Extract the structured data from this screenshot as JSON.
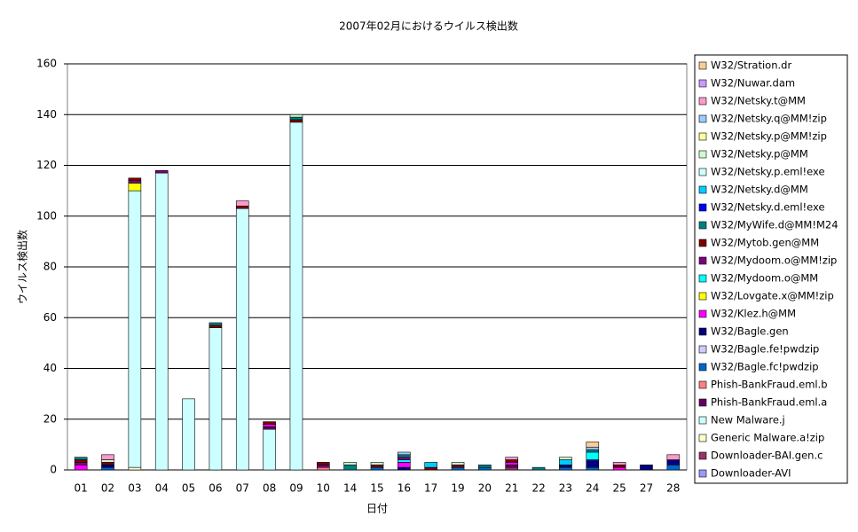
{
  "chart_data": {
    "type": "stacked_bar",
    "title": "2007年02月におけるウイルス検出数",
    "x_label": "日付",
    "y_label": "ウイルス検出数",
    "categories": [
      "01",
      "02",
      "03",
      "04",
      "05",
      "06",
      "07",
      "08",
      "09",
      "10",
      "14",
      "15",
      "16",
      "17",
      "19",
      "20",
      "21",
      "22",
      "23",
      "24",
      "25",
      "27",
      "28"
    ],
    "ylim": [
      0,
      160
    ],
    "yticks": [
      0,
      20,
      40,
      60,
      80,
      100,
      120,
      140,
      160
    ],
    "grid": true,
    "legend": "right",
    "series": [
      {
        "name": "Downloader-AVI",
        "color": "#9999ff",
        "values": [
          0,
          0,
          0,
          0,
          0,
          0,
          0,
          0,
          0,
          0,
          0,
          0,
          0,
          0,
          0,
          0,
          0,
          0,
          0,
          0,
          0,
          0,
          0
        ]
      },
      {
        "name": "Downloader-BAI.gen.c",
        "color": "#993366",
        "values": [
          0,
          0,
          0,
          0,
          0,
          0,
          0,
          0,
          0,
          0,
          0,
          0,
          0,
          0,
          0,
          0,
          1,
          0,
          0,
          0,
          0,
          0,
          0
        ]
      },
      {
        "name": "Generic Malware.a!zip",
        "color": "#ffffcc",
        "values": [
          0,
          0,
          1,
          0,
          0,
          0,
          0,
          0,
          0,
          0,
          0,
          0,
          0,
          0,
          0,
          0,
          0,
          0,
          0,
          0,
          0,
          0,
          0
        ]
      },
      {
        "name": "New Malware.j",
        "color": "#ccffff",
        "values": [
          0,
          0,
          109,
          117,
          28,
          56,
          103,
          16,
          137,
          0,
          0,
          0,
          0,
          0,
          0,
          0,
          0,
          0,
          0,
          0,
          0,
          0,
          0
        ]
      },
      {
        "name": "Phish-BankFraud.eml.a",
        "color": "#660066",
        "values": [
          0,
          0,
          0,
          0,
          0,
          0,
          0,
          1,
          0,
          0,
          0,
          0,
          0,
          0,
          0,
          0,
          1,
          0,
          0,
          0,
          0,
          0,
          0
        ]
      },
      {
        "name": "Phish-BankFraud.eml.b",
        "color": "#ff8080",
        "values": [
          0,
          0,
          0,
          0,
          0,
          0,
          0,
          0,
          0,
          1,
          0,
          0,
          0,
          0,
          0,
          0,
          0,
          0,
          0,
          0,
          0,
          0,
          0
        ]
      },
      {
        "name": "W32/Bagle.fc!pwdzip",
        "color": "#0066cc",
        "values": [
          0,
          1,
          0,
          0,
          0,
          0,
          0,
          0,
          0,
          0,
          0,
          1,
          0,
          0,
          1,
          1,
          0,
          0,
          1,
          1,
          0,
          0,
          2
        ]
      },
      {
        "name": "W32/Bagle.fe!pwdzip",
        "color": "#ccccff",
        "values": [
          0,
          0,
          0,
          0,
          0,
          0,
          0,
          0,
          0,
          0,
          0,
          0,
          0,
          0,
          0,
          0,
          0,
          0,
          0,
          0,
          0,
          0,
          0
        ]
      },
      {
        "name": "W32/Bagle.gen",
        "color": "#000080",
        "values": [
          0,
          1,
          0,
          0,
          0,
          0,
          0,
          0,
          0,
          0,
          0,
          0,
          1,
          0,
          0,
          0,
          0,
          0,
          1,
          3,
          0,
          2,
          2
        ]
      },
      {
        "name": "W32/Klez.h@MM",
        "color": "#ff00ff",
        "values": [
          2,
          0,
          0,
          0,
          0,
          0,
          0,
          1,
          0,
          0,
          0,
          0,
          2,
          0,
          0,
          0,
          1,
          0,
          0,
          0,
          1,
          0,
          0
        ]
      },
      {
        "name": "W32/Lovgate.x@MM!zip",
        "color": "#ffff00",
        "values": [
          0,
          0,
          3,
          0,
          0,
          0,
          0,
          0,
          0,
          0,
          0,
          0,
          0,
          0,
          0,
          0,
          0,
          0,
          0,
          0,
          0,
          0,
          0
        ]
      },
      {
        "name": "W32/Mydoom.o@MM",
        "color": "#00ffff",
        "values": [
          0,
          0,
          0,
          0,
          0,
          0,
          0,
          0,
          0,
          0,
          0,
          0,
          1,
          0,
          0,
          0,
          0,
          0,
          0,
          3,
          0,
          0,
          0
        ]
      },
      {
        "name": "W32/Mydoom.o@MM!zip",
        "color": "#800080",
        "values": [
          1,
          0,
          1,
          1,
          0,
          0,
          0,
          0,
          0,
          1,
          0,
          0,
          1,
          0,
          0,
          0,
          0,
          0,
          0,
          0,
          0,
          0,
          0
        ]
      },
      {
        "name": "W32/Mytob.gen@MM",
        "color": "#800000",
        "values": [
          1,
          1,
          1,
          0,
          0,
          1,
          1,
          1,
          1,
          1,
          0,
          1,
          0,
          1,
          1,
          0,
          1,
          0,
          0,
          0,
          1,
          0,
          0
        ]
      },
      {
        "name": "W32/MyWife.d@MM!M24",
        "color": "#008080",
        "values": [
          1,
          0,
          0,
          0,
          0,
          1,
          0,
          0,
          1,
          0,
          2,
          0,
          1,
          0,
          0,
          1,
          0,
          1,
          0,
          1,
          0,
          0,
          0
        ]
      },
      {
        "name": "W32/Netsky.d.eml!exe",
        "color": "#0000ff",
        "values": [
          0,
          0,
          0,
          0,
          0,
          0,
          0,
          0,
          0,
          0,
          0,
          0,
          0,
          0,
          0,
          0,
          0,
          0,
          0,
          0,
          0,
          0,
          0
        ]
      },
      {
        "name": "W32/Netsky.d@MM",
        "color": "#00ccff",
        "values": [
          0,
          0,
          0,
          0,
          0,
          0,
          0,
          0,
          0,
          0,
          0,
          0,
          0,
          2,
          0,
          0,
          0,
          0,
          2,
          0,
          0,
          0,
          0
        ]
      },
      {
        "name": "W32/Netsky.p.eml!exe",
        "color": "#ccffff",
        "values": [
          0,
          0,
          0,
          0,
          0,
          0,
          0,
          0,
          0,
          0,
          0,
          0,
          0,
          0,
          0,
          0,
          0,
          0,
          0,
          0,
          0,
          0,
          0
        ]
      },
      {
        "name": "W32/Netsky.p@MM",
        "color": "#ccffcc",
        "values": [
          0,
          1,
          0,
          0,
          0,
          0,
          0,
          0,
          1,
          0,
          1,
          1,
          0,
          0,
          1,
          0,
          0,
          0,
          1,
          0,
          0,
          0,
          0
        ]
      },
      {
        "name": "W32/Netsky.p@MM!zip",
        "color": "#ffff99",
        "values": [
          0,
          0,
          0,
          0,
          0,
          0,
          0,
          0,
          0,
          0,
          0,
          0,
          0,
          0,
          0,
          0,
          0,
          0,
          0,
          0,
          0,
          0,
          0
        ]
      },
      {
        "name": "W32/Netsky.q@MM!zip",
        "color": "#99ccff",
        "values": [
          0,
          0,
          0,
          0,
          0,
          0,
          0,
          0,
          0,
          0,
          0,
          0,
          1,
          0,
          0,
          0,
          0,
          0,
          0,
          1,
          0,
          0,
          0
        ]
      },
      {
        "name": "W32/Netsky.t@MM",
        "color": "#ff99cc",
        "values": [
          0,
          2,
          0,
          0,
          0,
          0,
          2,
          0,
          0,
          0,
          0,
          0,
          0,
          0,
          0,
          0,
          1,
          0,
          0,
          0,
          1,
          0,
          2
        ]
      },
      {
        "name": "W32/Nuwar.dam",
        "color": "#cc99ff",
        "values": [
          0,
          0,
          0,
          0,
          0,
          0,
          0,
          0,
          0,
          0,
          0,
          0,
          0,
          0,
          0,
          0,
          0,
          0,
          0,
          0,
          0,
          0,
          0
        ]
      },
      {
        "name": "W32/Stration.dr",
        "color": "#ffcc99",
        "values": [
          0,
          0,
          0,
          0,
          0,
          0,
          0,
          0,
          0,
          0,
          0,
          0,
          0,
          0,
          0,
          0,
          0,
          0,
          0,
          2,
          0,
          0,
          0
        ]
      }
    ]
  }
}
